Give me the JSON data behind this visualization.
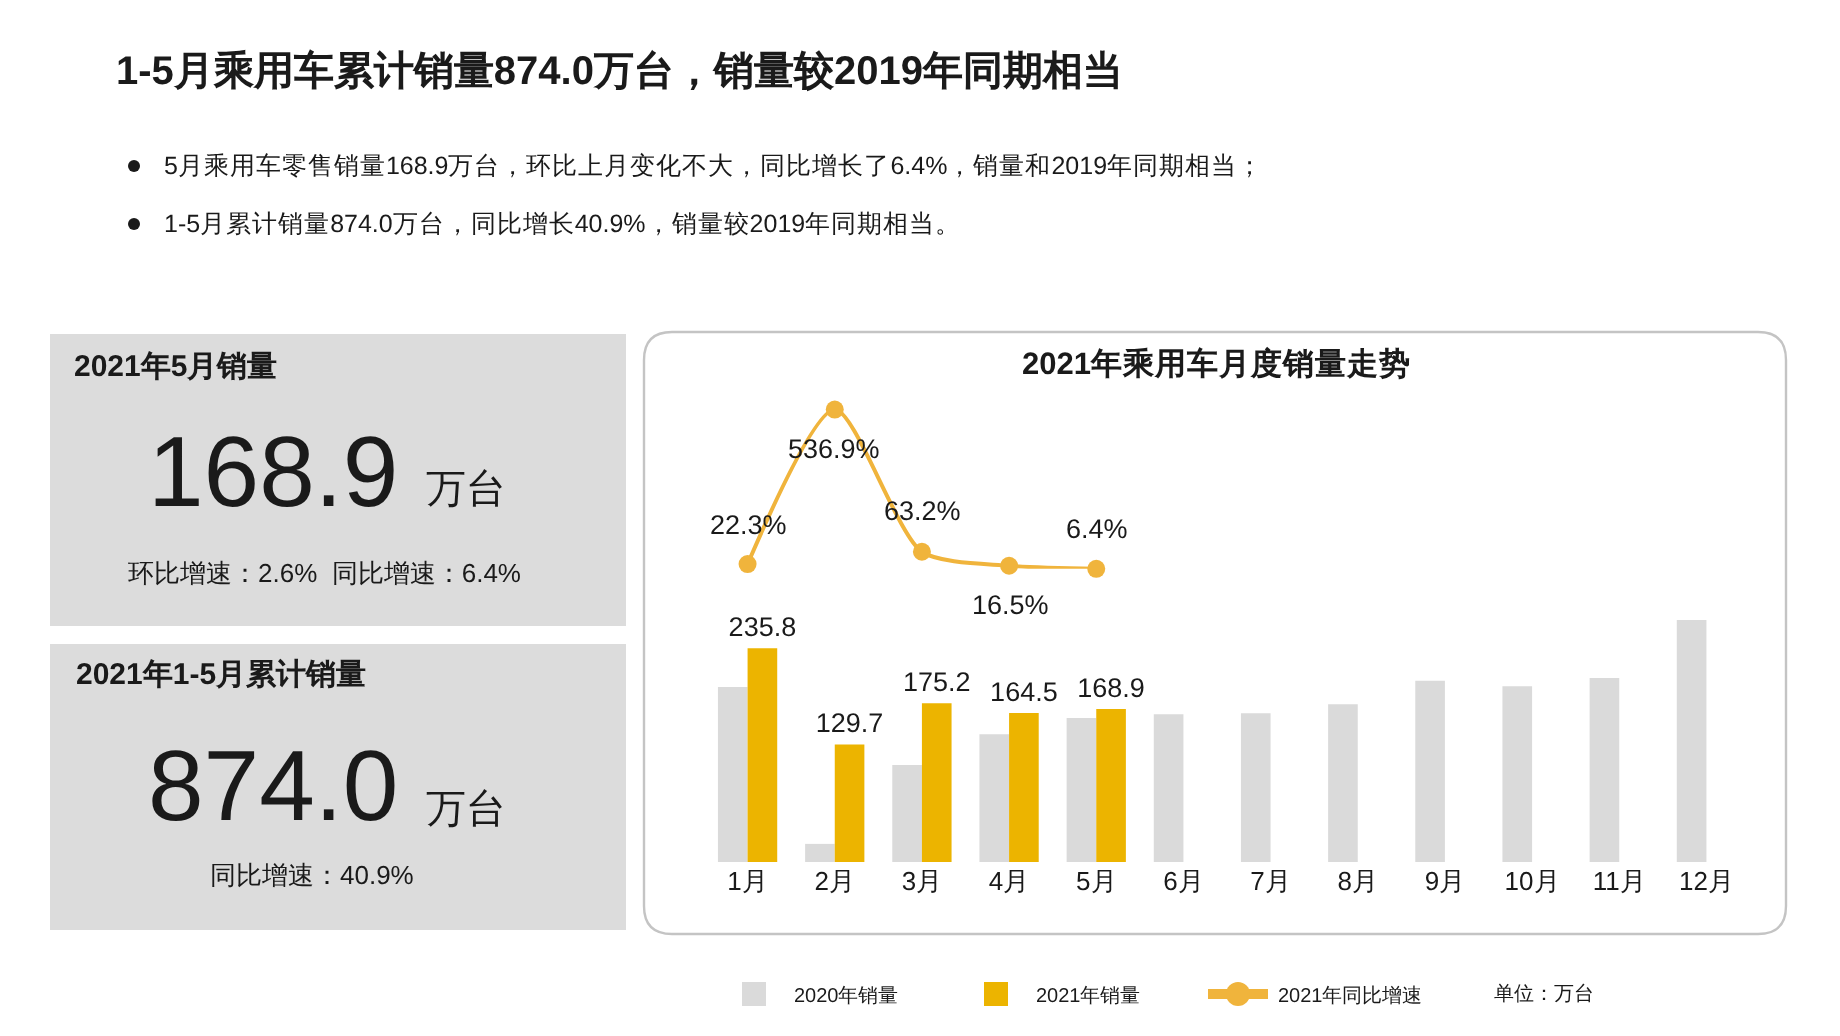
{
  "chart_data": [
    {
      "type": "other",
      "title": "1-5月乘用车累计销量874.0万台，销量较2019年同期相当",
      "annotations": [
        "5月乘用车零售销量168.9万台，环比上月变化不大，同比增长了6.4%，销量和2019年同期相当；",
        "1-5月累计销量874.0万台，同比增长40.9%，销量较2019年同期相当。"
      ]
    },
    {
      "type": "other",
      "title": "2021年5月销量",
      "annotations": [
        "168.9",
        "万台",
        "环比增速：2.6%  同比增速：6.4%"
      ]
    },
    {
      "type": "other",
      "title": "2021年1-5月累计销量",
      "annotations": [
        "874.0",
        "万台",
        "同比增速：40.9%"
      ]
    },
    {
      "type": "line",
      "title": "2021年乘用车月度销量走势",
      "categories": [
        null,
        null,
        null,
        null,
        null,
        null,
        null,
        null,
        null,
        null,
        null,
        null
      ],
      "tick_labels": false,
      "series": [
        {
          "name": "2021年同比增速",
          "color": "#f0b43c",
          "marker": "circle",
          "values": [
            22.3,
            536.9,
            63.2,
            16.5,
            6.4,
            null,
            null,
            null,
            null,
            null,
            null,
            null
          ],
          "value_labels": [
            "22.3%",
            "536.9%",
            "63.2%",
            "16.5%",
            "6.4%",
            null,
            null,
            null,
            null,
            null,
            null,
            null
          ]
        }
      ]
    },
    {
      "type": "bar",
      "categories": [
        "1月",
        "2月",
        "3月",
        "4月",
        "5月",
        "6月",
        "7月",
        "8月",
        "9月",
        "10月",
        "11月",
        "12月"
      ],
      "series": [
        {
          "name": "2020年销量",
          "color": "#dadada",
          "values": [
            193,
            20,
            107,
            141,
            159,
            163,
            164,
            174,
            200,
            194,
            203,
            267
          ]
        },
        {
          "name": "2021年销量",
          "color": "#ecb400",
          "values": [
            235.8,
            129.7,
            175.2,
            164.5,
            168.9,
            null,
            null,
            null,
            null,
            null,
            null,
            null
          ],
          "value_labels": [
            "235.8",
            "129.7",
            "175.2",
            "164.5",
            "168.9",
            null,
            null,
            null,
            null,
            null,
            null,
            null
          ]
        }
      ],
      "tick_labels": "x",
      "legend": "bottom",
      "annotations": [
        "单位：万台"
      ]
    }
  ]
}
